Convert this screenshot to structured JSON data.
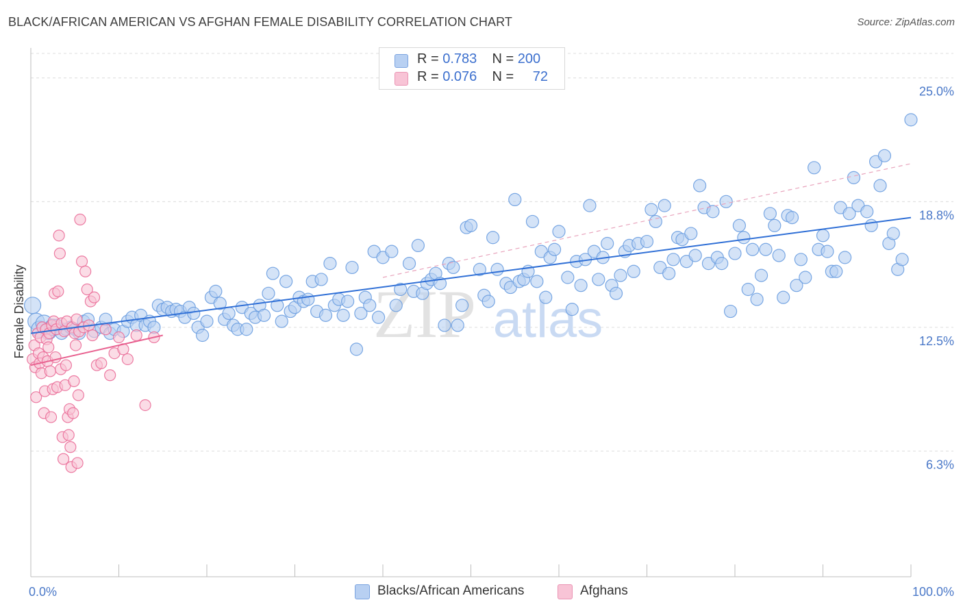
{
  "title": "BLACK/AFRICAN AMERICAN VS AFGHAN FEMALE DISABILITY CORRELATION CHART",
  "source": "Source: ZipAtlas.com",
  "watermark": {
    "zip": "ZIP",
    "atlas": "atlas"
  },
  "legend": {
    "r_label": "R =",
    "n_label": "N =",
    "rows": [
      {
        "r": "0.783",
        "n": "200",
        "fill": "#b8d0f2",
        "stroke": "#7aa3e0"
      },
      {
        "r": "0.076",
        "n": "72",
        "fill": "#f8c4d6",
        "stroke": "#ea93b3"
      }
    ]
  },
  "bottom_legend": [
    {
      "label": "Blacks/African Americans",
      "fill": "#b8d0f2",
      "stroke": "#7aa3e0"
    },
    {
      "label": "Afghans",
      "fill": "#f8c4d6",
      "stroke": "#ea93b3"
    }
  ],
  "chart_data": {
    "type": "scatter",
    "title": "BLACK/AFRICAN AMERICAN VS AFGHAN FEMALE DISABILITY CORRELATION CHART",
    "xlabel": "",
    "ylabel": "Female Disability",
    "xlim": [
      0,
      100
    ],
    "ylim": [
      0,
      26.5
    ],
    "x_tick_labels": [
      "0.0%",
      "100.0%"
    ],
    "y_ticks": [
      6.3,
      12.5,
      18.8,
      25.0
    ],
    "y_tick_labels": [
      "6.3%",
      "12.5%",
      "18.8%",
      "25.0%"
    ],
    "grid": true,
    "series": [
      {
        "name": "Blacks/African Americans",
        "color": "#6a9de0",
        "fill": "#b8d0f2",
        "trend": {
          "x0": 0,
          "y0": 12.2,
          "x1": 100,
          "y1": 18.0,
          "style": "solid"
        },
        "trend_extension": {
          "x0": 40,
          "y0": 15.0,
          "x1": 100,
          "y1": 20.7,
          "style": "dashed"
        },
        "points": [
          [
            0.2,
            13.6
          ],
          [
            0.6,
            12.8
          ],
          [
            1.0,
            12.4
          ],
          [
            1.5,
            12.7
          ],
          [
            2.0,
            12.3
          ],
          [
            2.5,
            12.5
          ],
          [
            3.0,
            12.6
          ],
          [
            3.5,
            12.2
          ],
          [
            4.0,
            12.4
          ],
          [
            4.5,
            12.5
          ],
          [
            5.0,
            12.4
          ],
          [
            5.5,
            12.2
          ],
          [
            6.0,
            12.8
          ],
          [
            6.5,
            12.9
          ],
          [
            7.2,
            12.3
          ],
          [
            8.0,
            12.5
          ],
          [
            8.5,
            12.9
          ],
          [
            9.0,
            12.2
          ],
          [
            9.5,
            12.4
          ],
          [
            10.5,
            12.3
          ],
          [
            11.0,
            12.8
          ],
          [
            11.5,
            13.0
          ],
          [
            12.0,
            12.6
          ],
          [
            12.5,
            13.1
          ],
          [
            13.0,
            12.6
          ],
          [
            13.5,
            12.8
          ],
          [
            14.0,
            12.5
          ],
          [
            14.5,
            13.6
          ],
          [
            15.0,
            13.4
          ],
          [
            15.5,
            13.5
          ],
          [
            16.0,
            13.3
          ],
          [
            16.5,
            13.4
          ],
          [
            17.0,
            13.3
          ],
          [
            17.5,
            13.0
          ],
          [
            18.0,
            13.5
          ],
          [
            18.5,
            13.2
          ],
          [
            19.0,
            12.5
          ],
          [
            19.5,
            12.1
          ],
          [
            20.0,
            12.8
          ],
          [
            20.5,
            14.0
          ],
          [
            21.0,
            14.3
          ],
          [
            21.5,
            13.7
          ],
          [
            22.0,
            12.9
          ],
          [
            22.5,
            13.2
          ],
          [
            23.0,
            12.6
          ],
          [
            23.5,
            12.4
          ],
          [
            24.0,
            13.5
          ],
          [
            24.5,
            12.4
          ],
          [
            25.0,
            13.2
          ],
          [
            25.5,
            13.0
          ],
          [
            26.0,
            13.6
          ],
          [
            26.5,
            13.1
          ],
          [
            27.0,
            14.2
          ],
          [
            27.5,
            15.2
          ],
          [
            28.0,
            13.6
          ],
          [
            28.5,
            12.8
          ],
          [
            29.0,
            14.8
          ],
          [
            29.5,
            13.3
          ],
          [
            30.0,
            13.5
          ],
          [
            30.5,
            14.0
          ],
          [
            31.0,
            13.8
          ],
          [
            31.5,
            13.9
          ],
          [
            32.0,
            14.8
          ],
          [
            32.5,
            13.3
          ],
          [
            33.0,
            14.9
          ],
          [
            33.5,
            13.1
          ],
          [
            34.0,
            15.7
          ],
          [
            34.5,
            13.6
          ],
          [
            35.0,
            13.9
          ],
          [
            35.5,
            13.1
          ],
          [
            36.0,
            13.8
          ],
          [
            36.5,
            15.5
          ],
          [
            37.0,
            11.4
          ],
          [
            37.5,
            13.2
          ],
          [
            38.0,
            14.0
          ],
          [
            38.5,
            13.6
          ],
          [
            39.0,
            16.3
          ],
          [
            39.5,
            13.0
          ],
          [
            40.0,
            16.0
          ],
          [
            41.0,
            16.3
          ],
          [
            41.5,
            13.6
          ],
          [
            42.0,
            14.4
          ],
          [
            43.0,
            15.7
          ],
          [
            43.5,
            14.3
          ],
          [
            44.0,
            16.6
          ],
          [
            44.5,
            14.2
          ],
          [
            45.0,
            14.7
          ],
          [
            45.5,
            14.9
          ],
          [
            46.0,
            15.2
          ],
          [
            46.5,
            14.7
          ],
          [
            47.0,
            12.6
          ],
          [
            47.5,
            15.7
          ],
          [
            48.0,
            15.5
          ],
          [
            48.5,
            12.6
          ],
          [
            49.0,
            13.6
          ],
          [
            49.5,
            17.5
          ],
          [
            50.0,
            17.6
          ],
          [
            51.0,
            15.4
          ],
          [
            51.5,
            14.1
          ],
          [
            52.0,
            13.8
          ],
          [
            52.5,
            17.0
          ],
          [
            53.0,
            15.4
          ],
          [
            54.0,
            14.7
          ],
          [
            54.5,
            14.5
          ],
          [
            55.0,
            18.9
          ],
          [
            55.5,
            14.8
          ],
          [
            56.0,
            14.9
          ],
          [
            56.5,
            15.3
          ],
          [
            57.0,
            17.8
          ],
          [
            57.5,
            14.8
          ],
          [
            58.0,
            16.3
          ],
          [
            58.5,
            14.0
          ],
          [
            59.0,
            16.0
          ],
          [
            59.5,
            16.4
          ],
          [
            60.0,
            17.3
          ],
          [
            61.0,
            15.0
          ],
          [
            61.5,
            13.4
          ],
          [
            62.0,
            15.8
          ],
          [
            62.5,
            14.6
          ],
          [
            63.0,
            15.9
          ],
          [
            63.5,
            18.6
          ],
          [
            64.0,
            16.3
          ],
          [
            64.5,
            14.9
          ],
          [
            65.0,
            16.0
          ],
          [
            65.5,
            16.7
          ],
          [
            66.0,
            14.6
          ],
          [
            66.5,
            14.2
          ],
          [
            67.0,
            15.1
          ],
          [
            67.5,
            16.3
          ],
          [
            68.0,
            16.6
          ],
          [
            68.5,
            15.3
          ],
          [
            69.0,
            16.7
          ],
          [
            70.0,
            16.8
          ],
          [
            70.5,
            18.4
          ],
          [
            71.0,
            17.8
          ],
          [
            71.5,
            15.5
          ],
          [
            72.0,
            18.6
          ],
          [
            72.5,
            15.2
          ],
          [
            73.0,
            15.9
          ],
          [
            73.5,
            17.0
          ],
          [
            74.0,
            16.9
          ],
          [
            74.5,
            15.8
          ],
          [
            75.0,
            17.2
          ],
          [
            75.5,
            16.1
          ],
          [
            76.0,
            19.6
          ],
          [
            76.5,
            18.5
          ],
          [
            77.0,
            15.7
          ],
          [
            77.5,
            18.3
          ],
          [
            78.0,
            16.0
          ],
          [
            78.5,
            15.7
          ],
          [
            79.0,
            18.8
          ],
          [
            79.5,
            13.3
          ],
          [
            80.0,
            16.2
          ],
          [
            80.5,
            17.6
          ],
          [
            81.0,
            17.0
          ],
          [
            81.5,
            14.4
          ],
          [
            82.0,
            16.4
          ],
          [
            82.5,
            13.9
          ],
          [
            83.0,
            15.1
          ],
          [
            83.5,
            16.4
          ],
          [
            84.0,
            18.2
          ],
          [
            84.5,
            17.6
          ],
          [
            85.0,
            16.1
          ],
          [
            85.5,
            14.0
          ],
          [
            86.0,
            18.1
          ],
          [
            86.5,
            18.0
          ],
          [
            87.0,
            14.6
          ],
          [
            87.5,
            15.9
          ],
          [
            88.0,
            15.0
          ],
          [
            89.0,
            20.5
          ],
          [
            89.5,
            16.4
          ],
          [
            90.0,
            17.1
          ],
          [
            90.5,
            16.3
          ],
          [
            91.0,
            15.3
          ],
          [
            91.5,
            15.3
          ],
          [
            92.0,
            18.5
          ],
          [
            92.5,
            16.0
          ],
          [
            93.0,
            18.2
          ],
          [
            93.5,
            20.0
          ],
          [
            94.0,
            18.6
          ],
          [
            95.0,
            18.3
          ],
          [
            95.5,
            17.6
          ],
          [
            96.0,
            20.8
          ],
          [
            96.5,
            19.6
          ],
          [
            97.0,
            21.1
          ],
          [
            97.5,
            16.7
          ],
          [
            98.0,
            17.2
          ],
          [
            98.5,
            15.4
          ],
          [
            99.0,
            15.9
          ],
          [
            100.0,
            22.9
          ]
        ]
      },
      {
        "name": "Afghans",
        "color": "#ea6d98",
        "fill": "#f8c4d6",
        "trend": {
          "x0": 0,
          "y0": 10.6,
          "x1": 15,
          "y1": 12.1,
          "style": "solid"
        },
        "points": [
          [
            0.2,
            10.9
          ],
          [
            0.4,
            11.6
          ],
          [
            0.5,
            10.5
          ],
          [
            0.6,
            9.0
          ],
          [
            0.8,
            12.2
          ],
          [
            0.9,
            11.2
          ],
          [
            1.0,
            10.7
          ],
          [
            1.1,
            12.0
          ],
          [
            1.2,
            10.2
          ],
          [
            1.3,
            12.5
          ],
          [
            1.4,
            11.0
          ],
          [
            1.5,
            8.2
          ],
          [
            1.6,
            9.3
          ],
          [
            1.7,
            12.4
          ],
          [
            1.8,
            11.9
          ],
          [
            1.9,
            10.8
          ],
          [
            2.0,
            11.5
          ],
          [
            2.1,
            12.2
          ],
          [
            2.2,
            10.3
          ],
          [
            2.3,
            8.0
          ],
          [
            2.4,
            12.6
          ],
          [
            2.5,
            9.4
          ],
          [
            2.6,
            12.8
          ],
          [
            2.7,
            14.2
          ],
          [
            2.8,
            11.0
          ],
          [
            2.9,
            12.4
          ],
          [
            3.0,
            9.5
          ],
          [
            3.1,
            14.3
          ],
          [
            3.2,
            17.1
          ],
          [
            3.3,
            16.2
          ],
          [
            3.4,
            10.4
          ],
          [
            3.5,
            12.7
          ],
          [
            3.6,
            7.0
          ],
          [
            3.7,
            5.9
          ],
          [
            3.8,
            12.3
          ],
          [
            3.9,
            9.6
          ],
          [
            4.0,
            10.6
          ],
          [
            4.1,
            12.8
          ],
          [
            4.2,
            8.0
          ],
          [
            4.3,
            7.1
          ],
          [
            4.4,
            8.4
          ],
          [
            4.5,
            6.5
          ],
          [
            4.6,
            5.5
          ],
          [
            4.7,
            12.5
          ],
          [
            4.8,
            8.2
          ],
          [
            4.9,
            9.8
          ],
          [
            5.0,
            12.2
          ],
          [
            5.1,
            11.6
          ],
          [
            5.2,
            12.9
          ],
          [
            5.3,
            5.7
          ],
          [
            5.4,
            9.1
          ],
          [
            5.5,
            12.3
          ],
          [
            5.6,
            17.9
          ],
          [
            5.8,
            15.8
          ],
          [
            6.0,
            12.5
          ],
          [
            6.2,
            15.3
          ],
          [
            6.4,
            14.4
          ],
          [
            6.6,
            12.6
          ],
          [
            6.8,
            13.8
          ],
          [
            7.0,
            12.1
          ],
          [
            7.2,
            14.0
          ],
          [
            7.5,
            10.6
          ],
          [
            8.0,
            10.7
          ],
          [
            8.5,
            12.4
          ],
          [
            9.0,
            10.1
          ],
          [
            9.5,
            11.2
          ],
          [
            10.0,
            12.0
          ],
          [
            10.5,
            11.4
          ],
          [
            11.0,
            10.9
          ],
          [
            12.0,
            12.1
          ],
          [
            13.0,
            8.6
          ],
          [
            14.0,
            12.0
          ]
        ]
      }
    ]
  }
}
